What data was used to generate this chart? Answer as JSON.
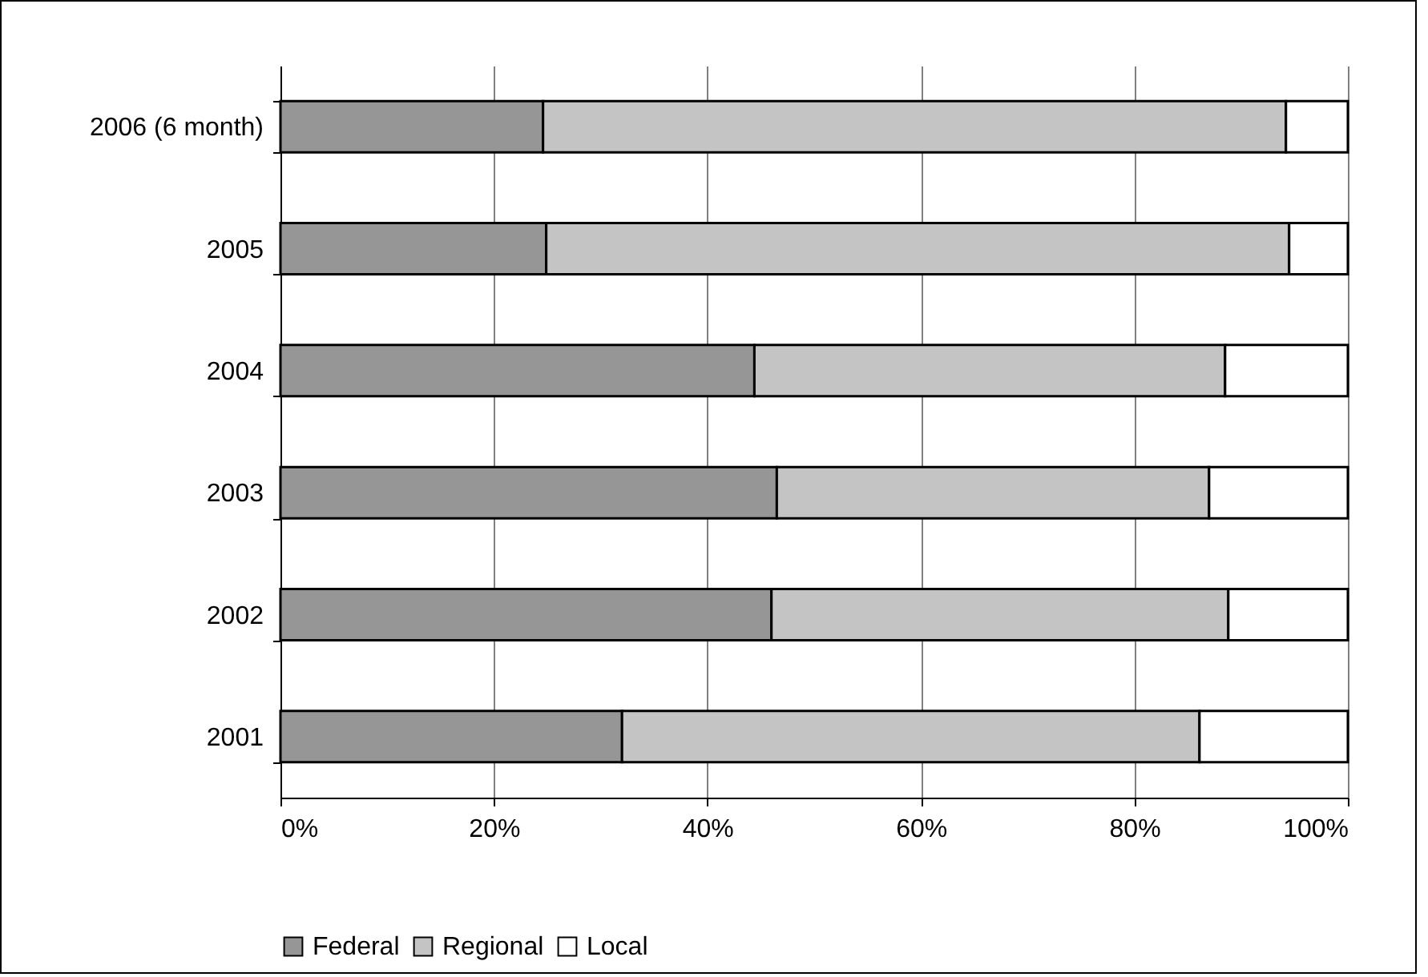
{
  "chart_data": {
    "type": "bar",
    "orientation": "horizontal",
    "stacked": true,
    "categories": [
      "2006 (6 month)",
      "2005",
      "2004",
      "2003",
      "2002",
      "2001"
    ],
    "series": [
      {
        "name": "Federal",
        "color": "#969696",
        "values": [
          24.6,
          24.9,
          44.4,
          46.5,
          46.0,
          32.0
        ]
      },
      {
        "name": "Regional",
        "color": "#c4c4c4",
        "values": [
          69.6,
          69.6,
          44.1,
          40.5,
          42.8,
          54.1
        ]
      },
      {
        "name": "Local",
        "color": "#ffffff",
        "values": [
          5.8,
          5.5,
          11.5,
          13.0,
          11.2,
          13.9
        ]
      }
    ],
    "xlim": [
      0,
      100
    ],
    "xticks": [
      {
        "value": 0,
        "label": "0%"
      },
      {
        "value": 20,
        "label": "20%"
      },
      {
        "value": 40,
        "label": "40%"
      },
      {
        "value": 60,
        "label": "60%"
      },
      {
        "value": 80,
        "label": "80%"
      },
      {
        "value": 100,
        "label": "100%"
      }
    ],
    "grid": "x",
    "legend": "bottom"
  }
}
